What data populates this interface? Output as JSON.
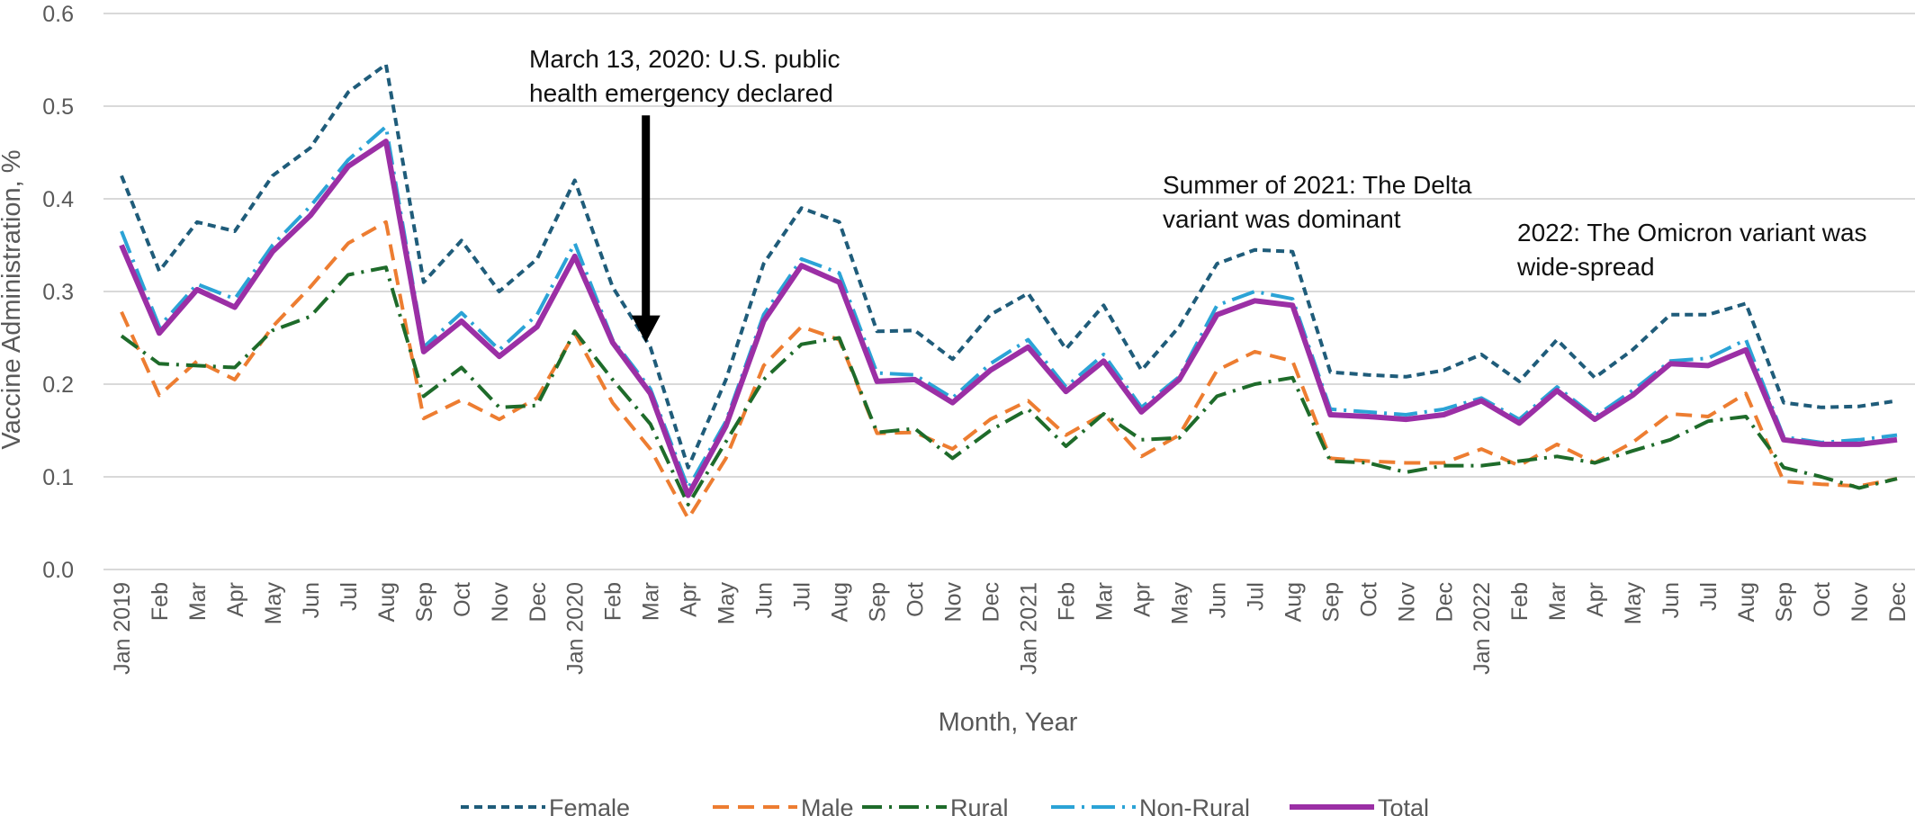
{
  "chart_data": {
    "type": "line",
    "xlabel": "Month, Year",
    "ylabel": "Vaccine Administration, %",
    "ylim": [
      0,
      0.6
    ],
    "y_ticks": [
      "0.0",
      "0.1",
      "0.2",
      "0.3",
      "0.4",
      "0.5",
      "0.6"
    ],
    "grid": true,
    "legend_position": "bottom",
    "categories": [
      "Jan 2019",
      "Feb",
      "Mar",
      "Apr",
      "May",
      "Jun",
      "Jul",
      "Aug",
      "Sep",
      "Oct",
      "Nov",
      "Dec",
      "Jan 2020",
      "Feb",
      "Mar",
      "Apr",
      "May",
      "Jun",
      "Jul",
      "Aug",
      "Sep",
      "Oct",
      "Nov",
      "Dec",
      "Jan 2021",
      "Feb",
      "Mar",
      "Apr",
      "May",
      "Jun",
      "Jul",
      "Aug",
      "Sep",
      "Oct",
      "Nov",
      "Dec",
      "Jan 2022",
      "Feb",
      "Mar",
      "Apr",
      "May",
      "Jun",
      "Jul",
      "Aug",
      "Sep",
      "Oct",
      "Nov",
      "Dec"
    ],
    "series": [
      {
        "name": "Female",
        "color": "#1f5c7a",
        "dash": "9,6",
        "width": 4,
        "values": [
          0.425,
          0.322,
          0.375,
          0.365,
          0.425,
          0.455,
          0.515,
          0.545,
          0.31,
          0.355,
          0.3,
          0.335,
          0.42,
          0.305,
          0.24,
          0.11,
          0.205,
          0.33,
          0.39,
          0.375,
          0.257,
          0.258,
          0.227,
          0.275,
          0.298,
          0.238,
          0.285,
          0.215,
          0.262,
          0.33,
          0.345,
          0.343,
          0.213,
          0.21,
          0.208,
          0.215,
          0.232,
          0.203,
          0.248,
          0.207,
          0.237,
          0.275,
          0.275,
          0.287,
          0.18,
          0.175,
          0.176,
          0.182
        ]
      },
      {
        "name": "Male",
        "color": "#ed7d31",
        "dash": "18,10",
        "width": 4,
        "values": [
          0.278,
          0.188,
          0.225,
          0.205,
          0.262,
          0.305,
          0.352,
          0.375,
          0.163,
          0.183,
          0.162,
          0.185,
          0.255,
          0.18,
          0.13,
          0.055,
          0.12,
          0.22,
          0.262,
          0.248,
          0.147,
          0.148,
          0.13,
          0.162,
          0.182,
          0.145,
          0.168,
          0.122,
          0.145,
          0.215,
          0.235,
          0.225,
          0.12,
          0.117,
          0.115,
          0.115,
          0.13,
          0.112,
          0.135,
          0.115,
          0.137,
          0.168,
          0.165,
          0.19,
          0.095,
          0.092,
          0.09,
          0.098
        ]
      },
      {
        "name": "Rural",
        "color": "#1e6b2a",
        "dash": "22,8,3,8",
        "width": 4,
        "values": [
          0.252,
          0.222,
          0.22,
          0.218,
          0.258,
          0.273,
          0.318,
          0.326,
          0.187,
          0.218,
          0.175,
          0.177,
          0.257,
          0.205,
          0.157,
          0.07,
          0.138,
          0.205,
          0.243,
          0.25,
          0.148,
          0.152,
          0.12,
          0.15,
          0.173,
          0.133,
          0.168,
          0.14,
          0.142,
          0.187,
          0.2,
          0.207,
          0.117,
          0.115,
          0.105,
          0.112,
          0.112,
          0.117,
          0.122,
          0.115,
          0.128,
          0.14,
          0.16,
          0.165,
          0.11,
          0.1,
          0.088,
          0.098
        ]
      },
      {
        "name": "Non-Rural",
        "color": "#2ba3d6",
        "dash": "26,8,3,8",
        "width": 4,
        "values": [
          0.365,
          0.262,
          0.308,
          0.292,
          0.35,
          0.392,
          0.442,
          0.478,
          0.24,
          0.277,
          0.237,
          0.275,
          0.352,
          0.248,
          0.195,
          0.088,
          0.16,
          0.275,
          0.335,
          0.32,
          0.212,
          0.21,
          0.185,
          0.222,
          0.248,
          0.197,
          0.232,
          0.175,
          0.208,
          0.285,
          0.3,
          0.292,
          0.173,
          0.17,
          0.167,
          0.173,
          0.185,
          0.162,
          0.197,
          0.165,
          0.193,
          0.225,
          0.228,
          0.248,
          0.143,
          0.137,
          0.14,
          0.145
        ]
      },
      {
        "name": "Total",
        "color": "#9b2fa5",
        "dash": "",
        "width": 6,
        "values": [
          0.35,
          0.255,
          0.302,
          0.283,
          0.343,
          0.382,
          0.435,
          0.462,
          0.235,
          0.268,
          0.23,
          0.262,
          0.338,
          0.245,
          0.19,
          0.08,
          0.155,
          0.268,
          0.328,
          0.31,
          0.203,
          0.205,
          0.18,
          0.215,
          0.24,
          0.192,
          0.225,
          0.17,
          0.205,
          0.275,
          0.29,
          0.285,
          0.167,
          0.165,
          0.162,
          0.167,
          0.182,
          0.158,
          0.193,
          0.162,
          0.188,
          0.222,
          0.22,
          0.237,
          0.14,
          0.135,
          0.135,
          0.14
        ]
      }
    ],
    "annotations": [
      {
        "lines": [
          "March 13, 2020: U.S. public",
          "health emergency declared"
        ],
        "x_index": 14,
        "arrow": true,
        "arrow_from_y": 0.49,
        "arrow_to_y": 0.245
      },
      {
        "lines": [
          "Summer of 2021: The Delta",
          "variant was dominant"
        ],
        "x_index": 28,
        "arrow": false
      },
      {
        "lines": [
          "2022: The Omicron variant was",
          "wide-spread"
        ],
        "x_index": 37,
        "arrow": false
      }
    ]
  }
}
